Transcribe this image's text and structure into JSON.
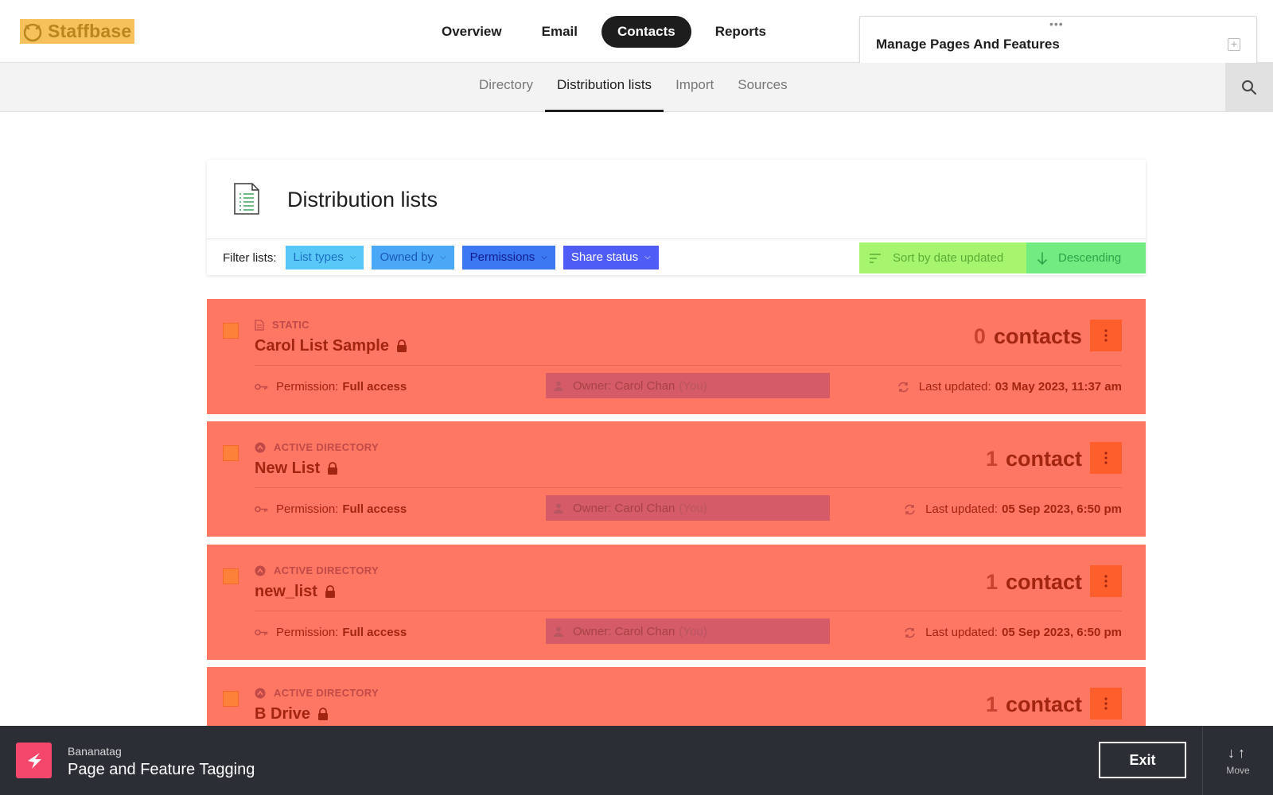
{
  "brand": {
    "logo_text": "Staffbase",
    "logo_color": "#f6c15a"
  },
  "main_nav": [
    {
      "label": "Overview",
      "active": false
    },
    {
      "label": "Email",
      "active": false
    },
    {
      "label": "Contacts",
      "active": true
    },
    {
      "label": "Reports",
      "active": false
    }
  ],
  "manage_panel": {
    "title": "Manage Pages And Features",
    "handle_icon": "more-horizontal-icon",
    "add_icon": "plus-square-icon"
  },
  "sub_nav": [
    {
      "label": "Directory",
      "active": false
    },
    {
      "label": "Distribution lists",
      "active": true
    },
    {
      "label": "Import",
      "active": false
    },
    {
      "label": "Sources",
      "active": false
    }
  ],
  "search_icon": "search-icon",
  "page": {
    "title": "Distribution lists",
    "filter_label": "Filter lists:",
    "filters": [
      {
        "label": "List types"
      },
      {
        "label": "Owned by"
      },
      {
        "label": "Permissions"
      },
      {
        "label": "Share status"
      }
    ],
    "sort": {
      "by_label": "Sort by date updated",
      "order_label": "Descending"
    }
  },
  "lists": [
    {
      "type": "STATIC",
      "name": "Carol List Sample",
      "count_num": "0",
      "count_label": "contacts",
      "permission_label": "Permission:",
      "permission_value": "Full access",
      "owner_label": "Owner:",
      "owner_name": "Carol Chan",
      "owner_you": "(You)",
      "updated_label": "Last updated:",
      "updated_value": "03 May 2023, 11:37 am"
    },
    {
      "type": "ACTIVE DIRECTORY",
      "name": "New List",
      "count_num": "1",
      "count_label": "contact",
      "permission_label": "Permission:",
      "permission_value": "Full access",
      "owner_label": "Owner:",
      "owner_name": "Carol Chan",
      "owner_you": "(You)",
      "updated_label": "Last updated:",
      "updated_value": "05 Sep 2023, 6:50 pm"
    },
    {
      "type": "ACTIVE DIRECTORY",
      "name": "new_list",
      "count_num": "1",
      "count_label": "contact",
      "permission_label": "Permission:",
      "permission_value": "Full access",
      "owner_label": "Owner:",
      "owner_name": "Carol Chan",
      "owner_you": "(You)",
      "updated_label": "Last updated:",
      "updated_value": "05 Sep 2023, 6:50 pm"
    },
    {
      "type": "ACTIVE DIRECTORY",
      "name": "B Drive",
      "count_num": "1",
      "count_label": "contact",
      "permission_label": "",
      "permission_value": "",
      "owner_label": "",
      "owner_name": "",
      "owner_you": "",
      "updated_label": "",
      "updated_value": ""
    }
  ],
  "bottom_bar": {
    "brand": "Bananatag",
    "title": "Page and Feature Tagging",
    "exit_label": "Exit",
    "move_label": "Move"
  },
  "colors": {
    "row_overlay": "#fe7763",
    "row_text": "#a22512",
    "menu_button": "#fe5d2c",
    "checkbox": "#fd8139",
    "owner_box": "#d55b68",
    "bottom_bar": "#2b2e35",
    "bananatag_logo": "#f5466b"
  }
}
